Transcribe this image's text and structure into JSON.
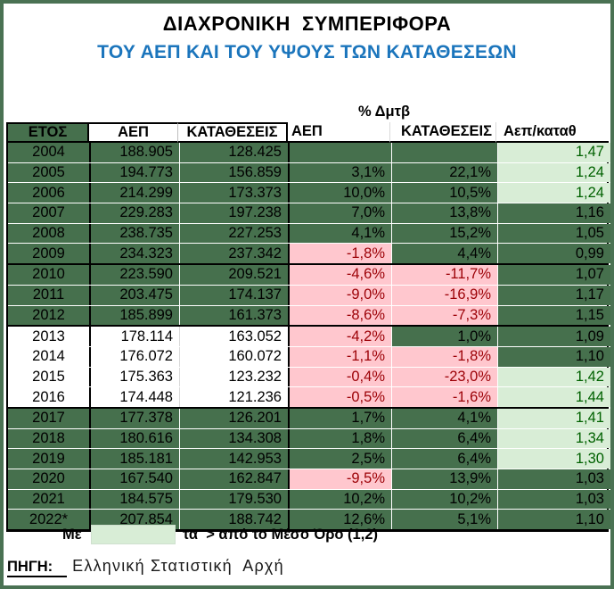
{
  "title": {
    "line1": "ΔΙΑΧΡΟΝΙΚΗ  ΣΥΜΠΕΡΙΦΟΡΑ",
    "line2": "ΤΟΥ ΑΕΠ ΚΑΙ ΤΟΥ ΥΨΟΥΣ ΤΩΝ ΚΑΤΑΘΕΣΕΩΝ"
  },
  "pct_change_label": "% Δμτβ",
  "table": {
    "headers": {
      "year": "ΕΤΟΣ",
      "aep": "ΑΕΠ",
      "deposits": "ΚΑΤΑΘΕΣΕΙΣ",
      "aep_pct": "ΑΕΠ",
      "deposits_pct": "ΚΑΤΑΘΕΣΕΙΣ",
      "ratio": "Αεπ/καταθ"
    },
    "rows": [
      {
        "year": "2004",
        "aep": "188.905",
        "deposits": "128.425",
        "aep_pct": "",
        "deposits_pct": "",
        "ratio": "1,47",
        "band": "green",
        "aep_pct_state": "empty",
        "deposits_pct_state": "empty",
        "ratio_state": "high",
        "group_end": false
      },
      {
        "year": "2005",
        "aep": "194.773",
        "deposits": "156.859",
        "aep_pct": "3,1%",
        "deposits_pct": "22,1%",
        "ratio": "1,24",
        "band": "green",
        "aep_pct_state": "pos",
        "deposits_pct_state": "pos",
        "ratio_state": "high",
        "group_end": false
      },
      {
        "year": "2006",
        "aep": "214.299",
        "deposits": "173.373",
        "aep_pct": "10,0%",
        "deposits_pct": "10,5%",
        "ratio": "1,24",
        "band": "green",
        "aep_pct_state": "pos",
        "deposits_pct_state": "pos",
        "ratio_state": "high",
        "group_end": false
      },
      {
        "year": "2007",
        "aep": "229.283",
        "deposits": "197.238",
        "aep_pct": "7,0%",
        "deposits_pct": "13,8%",
        "ratio": "1,16",
        "band": "green",
        "aep_pct_state": "pos",
        "deposits_pct_state": "pos",
        "ratio_state": "normal",
        "group_end": false
      },
      {
        "year": "2008",
        "aep": "238.735",
        "deposits": "227.253",
        "aep_pct": "4,1%",
        "deposits_pct": "15,2%",
        "ratio": "1,05",
        "band": "green",
        "aep_pct_state": "pos",
        "deposits_pct_state": "pos",
        "ratio_state": "normal",
        "group_end": false
      },
      {
        "year": "2009",
        "aep": "234.323",
        "deposits": "237.342",
        "aep_pct": "-1,8%",
        "deposits_pct": "4,4%",
        "ratio": "0,99",
        "band": "green",
        "aep_pct_state": "neg",
        "deposits_pct_state": "pos",
        "ratio_state": "normal",
        "group_end": true
      },
      {
        "year": "2010",
        "aep": "223.590",
        "deposits": "209.521",
        "aep_pct": "-4,6%",
        "deposits_pct": "-11,7%",
        "ratio": "1,07",
        "band": "green",
        "aep_pct_state": "neg",
        "deposits_pct_state": "neg",
        "ratio_state": "normal",
        "group_end": false
      },
      {
        "year": "2011",
        "aep": "203.475",
        "deposits": "174.137",
        "aep_pct": "-9,0%",
        "deposits_pct": "-16,9%",
        "ratio": "1,17",
        "band": "green",
        "aep_pct_state": "neg",
        "deposits_pct_state": "neg",
        "ratio_state": "normal",
        "group_end": false
      },
      {
        "year": "2012",
        "aep": "185.899",
        "deposits": "161.373",
        "aep_pct": "-8,6%",
        "deposits_pct": "-7,3%",
        "ratio": "1,15",
        "band": "green",
        "aep_pct_state": "neg",
        "deposits_pct_state": "neg",
        "ratio_state": "normal",
        "group_end": true
      },
      {
        "year": "2013",
        "aep": "178.114",
        "deposits": "163.052",
        "aep_pct": "-4,2%",
        "deposits_pct": "1,0%",
        "ratio": "1,09",
        "band": "white",
        "aep_pct_state": "neg",
        "deposits_pct_state": "pos",
        "ratio_state": "normal",
        "group_end": false
      },
      {
        "year": "2014",
        "aep": "176.072",
        "deposits": "160.072",
        "aep_pct": "-1,1%",
        "deposits_pct": "-1,8%",
        "ratio": "1,10",
        "band": "white",
        "aep_pct_state": "neg",
        "deposits_pct_state": "neg",
        "ratio_state": "normal",
        "group_end": false
      },
      {
        "year": "2015",
        "aep": "175.363",
        "deposits": "123.232",
        "aep_pct": "-0,4%",
        "deposits_pct": "-23,0%",
        "ratio": "1,42",
        "band": "white",
        "aep_pct_state": "neg",
        "deposits_pct_state": "neg",
        "ratio_state": "high",
        "group_end": false
      },
      {
        "year": "2016",
        "aep": "174.448",
        "deposits": "121.236",
        "aep_pct": "-0,5%",
        "deposits_pct": "-1,6%",
        "ratio": "1,44",
        "band": "white",
        "aep_pct_state": "neg",
        "deposits_pct_state": "neg",
        "ratio_state": "high",
        "group_end": true
      },
      {
        "year": "2017",
        "aep": "177.378",
        "deposits": "126.201",
        "aep_pct": "1,7%",
        "deposits_pct": "4,1%",
        "ratio": "1,41",
        "band": "green",
        "aep_pct_state": "pos",
        "deposits_pct_state": "pos",
        "ratio_state": "high",
        "group_end": false
      },
      {
        "year": "2018",
        "aep": "180.616",
        "deposits": "134.308",
        "aep_pct": "1,8%",
        "deposits_pct": "6,4%",
        "ratio": "1,34",
        "band": "green",
        "aep_pct_state": "pos",
        "deposits_pct_state": "pos",
        "ratio_state": "high",
        "group_end": false
      },
      {
        "year": "2019",
        "aep": "185.181",
        "deposits": "142.953",
        "aep_pct": "2,5%",
        "deposits_pct": "6,4%",
        "ratio": "1,30",
        "band": "green",
        "aep_pct_state": "pos",
        "deposits_pct_state": "pos",
        "ratio_state": "high",
        "group_end": false
      },
      {
        "year": "2020",
        "aep": "167.540",
        "deposits": "162.847",
        "aep_pct": "-9,5%",
        "deposits_pct": "13,9%",
        "ratio": "1,03",
        "band": "green",
        "aep_pct_state": "neg",
        "deposits_pct_state": "pos",
        "ratio_state": "normal",
        "group_end": false
      },
      {
        "year": "2021",
        "aep": "184.575",
        "deposits": "179.530",
        "aep_pct": "10,2%",
        "deposits_pct": "10,2%",
        "ratio": "1,03",
        "band": "green",
        "aep_pct_state": "pos",
        "deposits_pct_state": "pos",
        "ratio_state": "normal",
        "group_end": false
      },
      {
        "year": "2022*",
        "aep": "207.854",
        "deposits": "188.742",
        "aep_pct": "12,6%",
        "deposits_pct": "5,1%",
        "ratio": "1,10",
        "band": "green",
        "aep_pct_state": "pos",
        "deposits_pct_state": "pos",
        "ratio_state": "normal",
        "group_end": false
      }
    ]
  },
  "legend": {
    "prefix": "Με",
    "suffix": "τα  > από το Μέσο Όρο (1,2)"
  },
  "source": {
    "label": "ΠΗΓΗ:",
    "text": "Ελληνική Στατιστική  Αρχή"
  },
  "colors": {
    "dark_green_cell": "#46704d",
    "light_green_cell": "#d8edd6",
    "pink_cell": "#ffc7ce",
    "dark_red_text": "#9c0006",
    "green_text": "#006100",
    "subtitle_blue": "#1b75bc",
    "frame_green": "#4a7253"
  }
}
